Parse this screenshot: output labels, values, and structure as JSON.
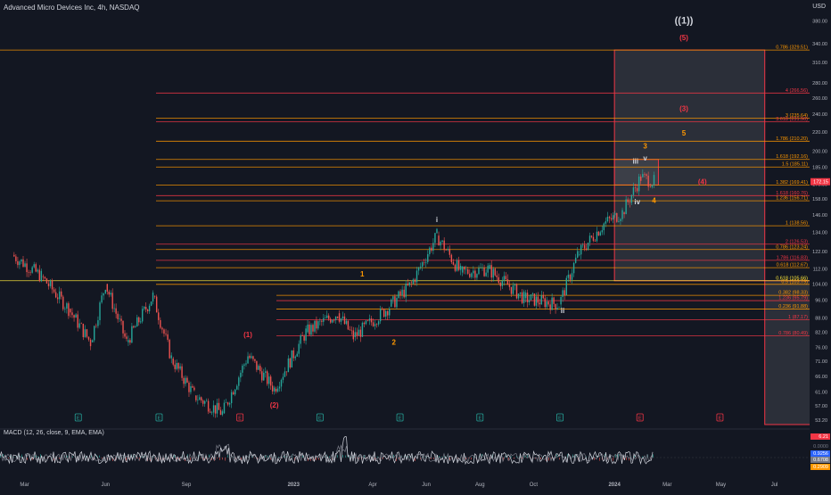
{
  "header": {
    "symbol_title": "Advanced Micro Devices Inc, 4h, NASDAQ",
    "currency": "USD"
  },
  "colors": {
    "background": "#131722",
    "fib_red": "#f23645",
    "fib_orange": "#ff9800",
    "fib_yellow": "#ffeb3b",
    "candle_up": "#26a69a",
    "candle_down": "#ef5350",
    "macd_line": "#d1d4dc",
    "signal_line": "#787b86",
    "box_fill": "#4a4d56"
  },
  "chart_data": [
    {
      "type": "candlestick",
      "title": "Advanced Micro Devices Inc, 4h, NASDAQ",
      "x_ticks": [
        "Mar",
        "Jun",
        "Sep",
        "2023",
        "Apr",
        "Jun",
        "Aug",
        "Oct",
        "2024",
        "Mar",
        "May",
        "Jul"
      ],
      "y_ticks": [
        380.0,
        340.0,
        310.0,
        280.0,
        260.0,
        240.0,
        220.0,
        200.0,
        185.0,
        170.0,
        158.0,
        146.0,
        134.0,
        122.0,
        112.0,
        104.0,
        96.0,
        88.0,
        82.0,
        76.0,
        71.0,
        66.0,
        61.0,
        57.0,
        53.2
      ],
      "ylim": [
        52,
        400
      ],
      "y_scale": "log",
      "grid": false,
      "last_price": "172.15",
      "price_path": [
        {
          "x": "2022-02-15",
          "y": 120
        },
        {
          "x": "2022-03-20",
          "y": 108
        },
        {
          "x": "2022-04-20",
          "y": 92
        },
        {
          "x": "2022-05-15",
          "y": 78
        },
        {
          "x": "2022-06-01",
          "y": 104
        },
        {
          "x": "2022-06-25",
          "y": 78
        },
        {
          "x": "2022-07-25",
          "y": 98
        },
        {
          "x": "2022-08-15",
          "y": 72
        },
        {
          "x": "2022-09-10",
          "y": 60
        },
        {
          "x": "2022-10-12",
          "y": 55
        },
        {
          "x": "2022-11-10",
          "y": 73
        },
        {
          "x": "2022-12-10",
          "y": 62
        },
        {
          "x": "2023-01-15",
          "y": 82
        },
        {
          "x": "2023-02-20",
          "y": 90
        },
        {
          "x": "2023-03-10",
          "y": 80
        },
        {
          "x": "2023-04-20",
          "y": 93
        },
        {
          "x": "2023-05-15",
          "y": 104
        },
        {
          "x": "2023-06-13",
          "y": 132
        },
        {
          "x": "2023-07-10",
          "y": 110
        },
        {
          "x": "2023-08-10",
          "y": 112
        },
        {
          "x": "2023-09-20",
          "y": 97
        },
        {
          "x": "2023-10-30",
          "y": 94
        },
        {
          "x": "2023-11-20",
          "y": 120
        },
        {
          "x": "2023-12-20",
          "y": 140
        },
        {
          "x": "2024-01-10",
          "y": 148
        },
        {
          "x": "2024-01-31",
          "y": 176
        },
        {
          "x": "2024-02-15",
          "y": 172.15
        }
      ],
      "levels": [
        {
          "label": "0.786 (329.51)",
          "value": 329.51,
          "color": "#ff9800"
        },
        {
          "label": "4 (266.56)",
          "value": 266.56,
          "color": "#f23645"
        },
        {
          "label": "3 (235.64)",
          "value": 235.64,
          "color": "#ff9800"
        },
        {
          "label": "3.618 (231.50)",
          "value": 231.5,
          "color": "#f23645"
        },
        {
          "label": "1.786 (210.20)",
          "value": 210.2,
          "color": "#ff9800"
        },
        {
          "label": "1.618 (192.16)",
          "value": 192.16,
          "color": "#ff9800"
        },
        {
          "label": "1.5 (185.11)",
          "value": 185.11,
          "color": "#ff9800"
        },
        {
          "label": "1.382 (169.41)",
          "value": 169.41,
          "color": "#ff9800"
        },
        {
          "label": "1.618 (160.76)",
          "value": 160.76,
          "color": "#f23645"
        },
        {
          "label": "1.236 (156.71)",
          "value": 156.71,
          "color": "#ff9800"
        },
        {
          "label": "1 (138.56)",
          "value": 138.56,
          "color": "#ff9800"
        },
        {
          "label": "2 (126.53)",
          "value": 126.53,
          "color": "#f23645"
        },
        {
          "label": "0.786 (123.24)",
          "value": 123.24,
          "color": "#ff9800"
        },
        {
          "label": "1.786 (116.83)",
          "value": 116.83,
          "color": "#f23645"
        },
        {
          "label": "0.618 (112.67)",
          "value": 112.67,
          "color": "#ff9800"
        },
        {
          "label": "0.618 (105.66)",
          "value": 105.66,
          "color": "#ffeb3b"
        },
        {
          "label": "0.5 (103.79)",
          "value": 103.79,
          "color": "#ff9800"
        },
        {
          "label": "0.382 (98.33)",
          "value": 98.33,
          "color": "#ff9800"
        },
        {
          "label": "1.236 (95.79)",
          "value": 95.79,
          "color": "#f23645"
        },
        {
          "label": "0.236 (91.88)",
          "value": 91.88,
          "color": "#ff9800"
        },
        {
          "label": "1 (87.17)",
          "value": 87.17,
          "color": "#f23645"
        },
        {
          "label": "0.786 (80.49)",
          "value": 80.49,
          "color": "#f23645"
        }
      ],
      "wave_labels": [
        {
          "text": "((1))",
          "x": "2024-03-20",
          "y": 375,
          "color": "#d1d4dc"
        },
        {
          "text": "(5)",
          "x": "2024-03-20",
          "y": 346,
          "color": "#f23645"
        },
        {
          "text": "(3)",
          "x": "2024-03-20",
          "y": 244,
          "color": "#f23645"
        },
        {
          "text": "5",
          "x": "2024-03-20",
          "y": 216,
          "color": "#ff9800"
        },
        {
          "text": "(4)",
          "x": "2024-04-10",
          "y": 170,
          "color": "#f23645"
        },
        {
          "text": "3",
          "x": "2024-02-05",
          "y": 203,
          "color": "#ff9800"
        },
        {
          "text": "v",
          "x": "2024-02-05",
          "y": 191,
          "color": "#d1d4dc"
        },
        {
          "text": "iii",
          "x": "2024-01-25",
          "y": 188,
          "color": "#d1d4dc"
        },
        {
          "text": "iv",
          "x": "2024-01-27",
          "y": 154,
          "color": "#d1d4dc"
        },
        {
          "text": "4",
          "x": "2024-02-15",
          "y": 155,
          "color": "#ff9800"
        },
        {
          "text": "i",
          "x": "2023-06-13",
          "y": 141,
          "color": "#d1d4dc"
        },
        {
          "text": "ii",
          "x": "2023-11-03",
          "y": 90,
          "color": "#d1d4dc"
        },
        {
          "text": "1",
          "x": "2023-03-20",
          "y": 108,
          "color": "#ff9800"
        },
        {
          "text": "2",
          "x": "2023-04-25",
          "y": 77,
          "color": "#ff9800"
        },
        {
          "text": "(1)",
          "x": "2022-11-10",
          "y": 80,
          "color": "#f23645"
        },
        {
          "text": "(2)",
          "x": "2022-12-10",
          "y": 56.5,
          "color": "#f23645"
        }
      ],
      "event_markers": [
        {
          "text": "E",
          "x": "2022-05-01",
          "color": "#26a69a"
        },
        {
          "text": "E",
          "x": "2022-08-01",
          "color": "#26a69a"
        },
        {
          "text": "E",
          "x": "2022-11-01",
          "color": "#f23645"
        },
        {
          "text": "E",
          "x": "2023-01-31",
          "color": "#26a69a"
        },
        {
          "text": "E",
          "x": "2023-05-02",
          "color": "#26a69a"
        },
        {
          "text": "E",
          "x": "2023-08-01",
          "color": "#26a69a"
        },
        {
          "text": "E",
          "x": "2023-10-31",
          "color": "#26a69a"
        },
        {
          "text": "E",
          "x": "2024-01-30",
          "color": "#f23645"
        },
        {
          "text": "E",
          "x": "2024-04-30",
          "color": "#f23645"
        }
      ],
      "zones": [
        {
          "name": "projection-zone",
          "x_start": "2024-01-01",
          "x_end": "2024-06-20",
          "y_start": 105.66,
          "y_end": 329.51
        },
        {
          "name": "wave-4-target-zone",
          "x_start": "2024-01-01",
          "x_end": "2024-02-20",
          "y_start": 169.41,
          "y_end": 192.16
        },
        {
          "name": "lower-projection-zone",
          "x_start": "2024-06-20",
          "x_end": "2024-12-31",
          "y_start": 52,
          "y_end": 105.66
        }
      ]
    },
    {
      "type": "line",
      "title": "MACD (12, 26, close, 9, EMA, EMA)",
      "series": [
        {
          "name": "MACD",
          "color": "#d1d4dc"
        },
        {
          "name": "Signal",
          "color": "#787b86"
        }
      ],
      "y_labels": [
        {
          "text": "6.21",
          "color": "#f23645"
        },
        {
          "text": "0.0000",
          "color": "#787b86"
        },
        {
          "text": "0.9256",
          "color": "#2962ff"
        },
        {
          "text": "0.6708",
          "color": "#787b86"
        },
        {
          "text": "0.2909",
          "color": "#ff9800"
        }
      ]
    }
  ]
}
